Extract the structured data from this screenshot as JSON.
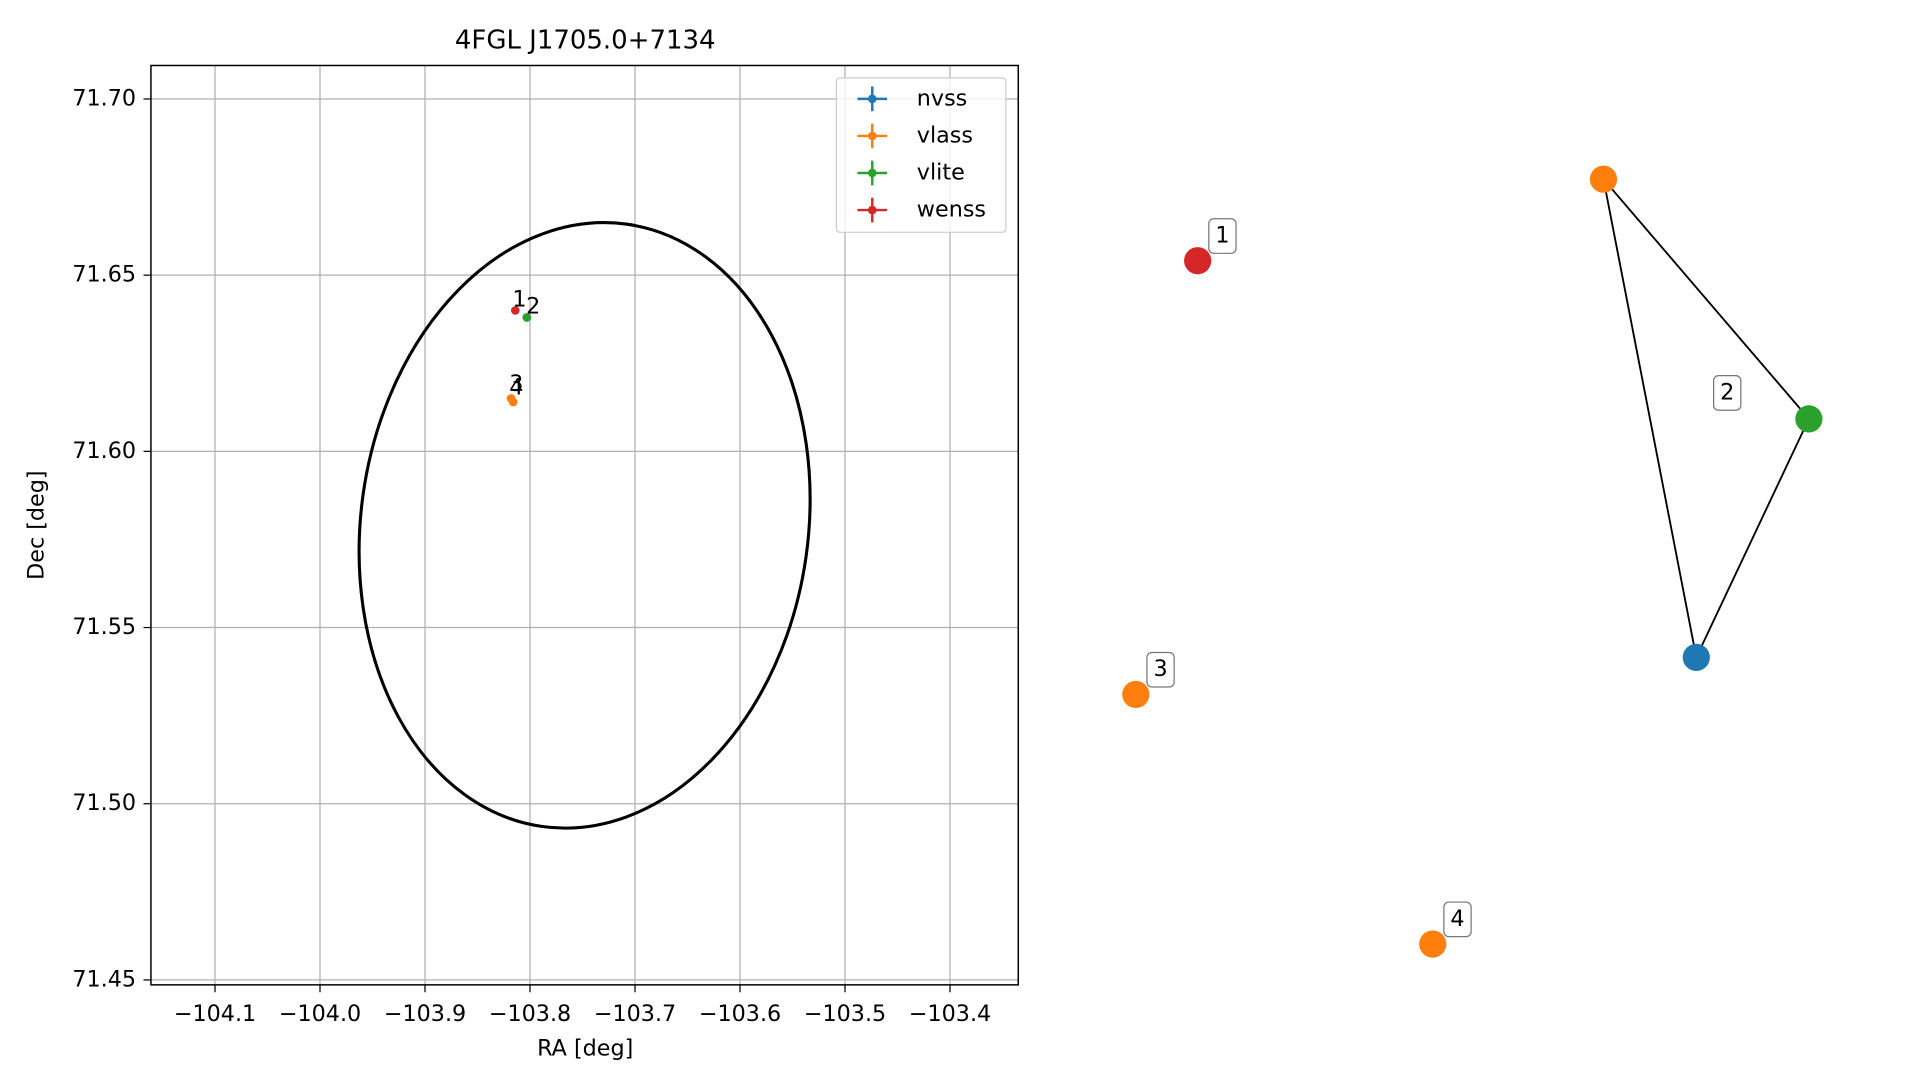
{
  "chart_data": {
    "type": "scatter",
    "title": "4FGL J1705.0+7134",
    "xlabel": "RA [deg]",
    "ylabel": "Dec [deg]",
    "xlim": [
      -104.161,
      -103.335
    ],
    "ylim": [
      71.4486,
      71.7095
    ],
    "xticks": [
      {
        "value": -104.1,
        "label": "−104.1"
      },
      {
        "value": -104.0,
        "label": "−104.0"
      },
      {
        "value": -103.9,
        "label": "−103.9"
      },
      {
        "value": -103.8,
        "label": "−103.8"
      },
      {
        "value": -103.7,
        "label": "−103.7"
      },
      {
        "value": -103.6,
        "label": "−103.6"
      },
      {
        "value": -103.5,
        "label": "−103.5"
      },
      {
        "value": -103.4,
        "label": "−103.4"
      }
    ],
    "yticks": [
      {
        "value": 71.7,
        "label": "71.70"
      },
      {
        "value": 71.65,
        "label": "71.65"
      },
      {
        "value": 71.6,
        "label": "71.60"
      },
      {
        "value": 71.55,
        "label": "71.55"
      },
      {
        "value": 71.5,
        "label": "71.50"
      },
      {
        "value": 71.45,
        "label": "71.45"
      }
    ],
    "grid": true,
    "legend": "upper right",
    "series": [
      {
        "name": "nvss",
        "color": "#1f77b4",
        "x": [
          -103.803
        ],
        "y": [
          71.638
        ]
      },
      {
        "name": "vlass",
        "color": "#ff7f0e",
        "x": [
          -103.818,
          -103.816
        ],
        "y": [
          71.615,
          71.614
        ]
      },
      {
        "name": "vlite",
        "color": "#2ca02c",
        "x": [
          -103.803
        ],
        "y": [
          71.638
        ]
      },
      {
        "name": "wenss",
        "color": "#d62728",
        "x": [
          -103.814
        ],
        "y": [
          71.64
        ]
      }
    ],
    "ellipse": {
      "center": [
        -103.748,
        71.579
      ],
      "width": 0.426,
      "height": 0.1726,
      "angle": 8,
      "color": "#000000"
    },
    "annotations": [
      {
        "text": "1",
        "x": -103.81,
        "y": 71.643
      },
      {
        "text": "2",
        "x": -103.797,
        "y": 71.641
      },
      {
        "text": "3",
        "x": -103.813,
        "y": 71.619
      },
      {
        "text": "4",
        "x": -103.813,
        "y": 71.618
      }
    ]
  },
  "graph": {
    "nodes": [
      {
        "color": "#d62728"
      },
      {
        "color": "#ff7f0e"
      },
      {
        "color": "#2ca02c"
      },
      {
        "color": "#1f77b4"
      },
      {
        "color": "#ff7f0e"
      },
      {
        "color": "#ff7f0e"
      }
    ],
    "edges": [
      [
        1,
        2
      ],
      [
        1,
        3
      ],
      [
        2,
        3
      ]
    ],
    "labels": [
      "1",
      "2",
      "3",
      "4"
    ]
  }
}
